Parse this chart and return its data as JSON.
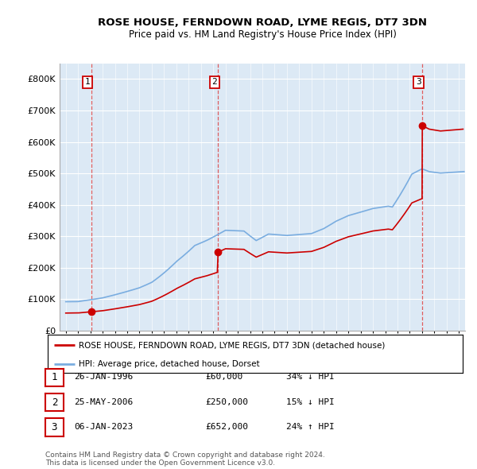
{
  "title": "ROSE HOUSE, FERNDOWN ROAD, LYME REGIS, DT7 3DN",
  "subtitle": "Price paid vs. HM Land Registry's House Price Index (HPI)",
  "legend_label_red": "ROSE HOUSE, FERNDOWN ROAD, LYME REGIS, DT7 3DN (detached house)",
  "legend_label_blue": "HPI: Average price, detached house, Dorset",
  "transactions": [
    {
      "date_num": 1996.07,
      "price": 60000,
      "label": "1"
    },
    {
      "date_num": 2006.4,
      "price": 250000,
      "label": "2"
    },
    {
      "date_num": 2023.02,
      "price": 652000,
      "label": "3"
    }
  ],
  "table_rows": [
    {
      "num": "1",
      "date": "26-JAN-1996",
      "price": "£60,000",
      "hpi": "34% ↓ HPI"
    },
    {
      "num": "2",
      "date": "25-MAY-2006",
      "price": "£250,000",
      "hpi": "15% ↓ HPI"
    },
    {
      "num": "3",
      "date": "06-JAN-2023",
      "price": "£652,000",
      "hpi": "24% ↑ HPI"
    }
  ],
  "footer": "Contains HM Land Registry data © Crown copyright and database right 2024.\nThis data is licensed under the Open Government Licence v3.0.",
  "xlim": [
    1993.5,
    2026.5
  ],
  "ylim": [
    0,
    850000
  ],
  "yticks": [
    0,
    100000,
    200000,
    300000,
    400000,
    500000,
    600000,
    700000,
    800000
  ],
  "ytick_labels": [
    "£0",
    "£100K",
    "£200K",
    "£300K",
    "£400K",
    "£500K",
    "£600K",
    "£700K",
    "£800K"
  ],
  "hpi_color": "#7aade0",
  "price_color": "#cc0000",
  "bg_color": "#dce9f5",
  "grid_color": "#aec8e0",
  "vline_color": "#dd4444"
}
